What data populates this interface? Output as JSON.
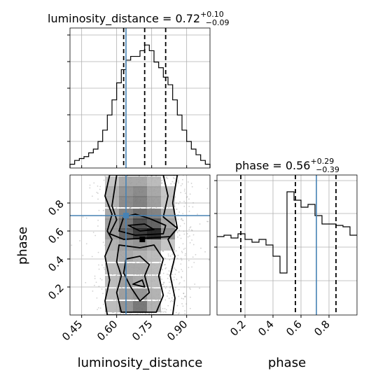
{
  "chart_data": [
    {
      "type": "histogram",
      "panel": "luminosity_distance marginal",
      "title_param": "luminosity_distance",
      "title_value": "0.72",
      "title_plus": "+0.10",
      "title_minus": "−0.09",
      "xlim": [
        0.4,
        1.0
      ],
      "bin_edges": [
        0.4,
        0.42,
        0.44,
        0.46,
        0.48,
        0.5,
        0.52,
        0.54,
        0.56,
        0.58,
        0.6,
        0.62,
        0.64,
        0.66,
        0.68,
        0.7,
        0.72,
        0.74,
        0.76,
        0.78,
        0.8,
        0.82,
        0.84,
        0.86,
        0.88,
        0.9,
        0.92,
        0.94,
        0.96,
        0.98,
        1.0
      ],
      "counts": [
        2,
        4,
        5,
        6,
        8,
        10,
        14,
        20,
        28,
        36,
        45,
        52,
        57,
        59,
        59,
        62,
        65,
        62,
        56,
        53,
        48,
        44,
        36,
        28,
        20,
        14,
        10,
        7,
        4,
        2
      ],
      "count_max": 74,
      "quantile_lines": [
        0.63,
        0.72,
        0.81
      ],
      "truth": 0.64,
      "gridlines_x": [
        0.45,
        0.6,
        0.75,
        0.9
      ],
      "grid": true
    },
    {
      "type": "histogram",
      "panel": "phase marginal",
      "title_param": "phase",
      "title_value": "0.56",
      "title_plus": "+0.29",
      "title_minus": "−0.39",
      "xlim": [
        0.0,
        1.0
      ],
      "bin_edges": [
        0.0,
        0.05,
        0.1,
        0.15,
        0.2,
        0.25,
        0.3,
        0.35,
        0.4,
        0.45,
        0.5,
        0.55,
        0.6,
        0.65,
        0.7,
        0.75,
        0.8,
        0.85,
        0.9,
        0.95,
        1.0
      ],
      "counts": [
        56,
        57,
        55,
        58,
        54,
        52,
        54,
        50,
        42,
        30,
        88,
        82,
        77,
        79,
        71,
        65,
        65,
        64,
        63,
        57
      ],
      "count_max": 100,
      "quantile_lines": [
        0.17,
        0.56,
        0.85
      ],
      "truth": 0.71,
      "ticks": [
        {
          "value": 0.2,
          "label": "0.2"
        },
        {
          "value": 0.4,
          "label": "0.4"
        },
        {
          "value": 0.6,
          "label": "0.6"
        },
        {
          "value": 0.8,
          "label": "0.8"
        }
      ],
      "grid": true
    },
    {
      "type": "heatmap",
      "panel": "2D posterior phase vs luminosity_distance",
      "xlabel": "luminosity_distance",
      "ylabel": "phase",
      "xlim": [
        0.4,
        1.0
      ],
      "ylim": [
        0.0,
        1.0
      ],
      "x_ticks": [
        {
          "value": 0.45,
          "label": "0.45"
        },
        {
          "value": 0.6,
          "label": "0.60"
        },
        {
          "value": 0.75,
          "label": "0.75"
        },
        {
          "value": 0.9,
          "label": "0.90"
        }
      ],
      "y_ticks": [
        {
          "value": 0.2,
          "label": "0.2"
        },
        {
          "value": 0.4,
          "label": "0.4"
        },
        {
          "value": 0.6,
          "label": "0.6"
        },
        {
          "value": 0.8,
          "label": "0.8"
        }
      ],
      "truth": {
        "x": 0.64,
        "y": 0.71
      },
      "density_cells": [
        {
          "x": 0.58,
          "y": 0.95,
          "v": 0.2
        },
        {
          "x": 0.64,
          "y": 0.95,
          "v": 0.35
        },
        {
          "x": 0.7,
          "y": 0.95,
          "v": 0.35
        },
        {
          "x": 0.76,
          "y": 0.95,
          "v": 0.25
        },
        {
          "x": 0.58,
          "y": 0.88,
          "v": 0.3
        },
        {
          "x": 0.64,
          "y": 0.88,
          "v": 0.45
        },
        {
          "x": 0.7,
          "y": 0.88,
          "v": 0.5
        },
        {
          "x": 0.76,
          "y": 0.88,
          "v": 0.35
        },
        {
          "x": 0.82,
          "y": 0.88,
          "v": 0.2
        },
        {
          "x": 0.58,
          "y": 0.81,
          "v": 0.3
        },
        {
          "x": 0.64,
          "y": 0.81,
          "v": 0.5
        },
        {
          "x": 0.7,
          "y": 0.81,
          "v": 0.55
        },
        {
          "x": 0.76,
          "y": 0.81,
          "v": 0.4
        },
        {
          "x": 0.82,
          "y": 0.81,
          "v": 0.2
        },
        {
          "x": 0.58,
          "y": 0.72,
          "v": 0.35
        },
        {
          "x": 0.64,
          "y": 0.72,
          "v": 0.55
        },
        {
          "x": 0.7,
          "y": 0.72,
          "v": 0.65
        },
        {
          "x": 0.76,
          "y": 0.72,
          "v": 0.55
        },
        {
          "x": 0.82,
          "y": 0.72,
          "v": 0.3
        },
        {
          "x": 0.58,
          "y": 0.65,
          "v": 0.4
        },
        {
          "x": 0.64,
          "y": 0.65,
          "v": 0.6
        },
        {
          "x": 0.7,
          "y": 0.65,
          "v": 0.8
        },
        {
          "x": 0.76,
          "y": 0.65,
          "v": 0.7
        },
        {
          "x": 0.82,
          "y": 0.65,
          "v": 0.35
        },
        {
          "x": 0.58,
          "y": 0.58,
          "v": 0.4
        },
        {
          "x": 0.64,
          "y": 0.58,
          "v": 0.7
        },
        {
          "x": 0.7,
          "y": 0.58,
          "v": 0.9
        },
        {
          "x": 0.76,
          "y": 0.58,
          "v": 1.0
        },
        {
          "x": 0.82,
          "y": 0.58,
          "v": 0.45
        },
        {
          "x": 0.58,
          "y": 0.5,
          "v": 0.3
        },
        {
          "x": 0.64,
          "y": 0.5,
          "v": 0.4
        },
        {
          "x": 0.7,
          "y": 0.5,
          "v": 0.45
        },
        {
          "x": 0.76,
          "y": 0.5,
          "v": 0.35
        },
        {
          "x": 0.82,
          "y": 0.5,
          "v": 0.2
        },
        {
          "x": 0.58,
          "y": 0.42,
          "v": 0.25
        },
        {
          "x": 0.64,
          "y": 0.42,
          "v": 0.35
        },
        {
          "x": 0.7,
          "y": 0.42,
          "v": 0.3
        },
        {
          "x": 0.76,
          "y": 0.42,
          "v": 0.25
        },
        {
          "x": 0.58,
          "y": 0.33,
          "v": 0.25
        },
        {
          "x": 0.64,
          "y": 0.33,
          "v": 0.35
        },
        {
          "x": 0.7,
          "y": 0.33,
          "v": 0.35
        },
        {
          "x": 0.76,
          "y": 0.33,
          "v": 0.25
        },
        {
          "x": 0.58,
          "y": 0.24,
          "v": 0.25
        },
        {
          "x": 0.64,
          "y": 0.24,
          "v": 0.4
        },
        {
          "x": 0.7,
          "y": 0.24,
          "v": 0.35
        },
        {
          "x": 0.76,
          "y": 0.24,
          "v": 0.25
        },
        {
          "x": 0.58,
          "y": 0.15,
          "v": 0.25
        },
        {
          "x": 0.64,
          "y": 0.15,
          "v": 0.4
        },
        {
          "x": 0.7,
          "y": 0.15,
          "v": 0.45
        },
        {
          "x": 0.76,
          "y": 0.15,
          "v": 0.3
        },
        {
          "x": 0.58,
          "y": 0.06,
          "v": 0.25
        },
        {
          "x": 0.64,
          "y": 0.06,
          "v": 0.45
        },
        {
          "x": 0.7,
          "y": 0.06,
          "v": 0.6
        },
        {
          "x": 0.76,
          "y": 0.06,
          "v": 0.3
        }
      ],
      "contours": [
        [
          [
            0.57,
            1.0
          ],
          [
            0.55,
            0.85
          ],
          [
            0.58,
            0.72
          ],
          [
            0.56,
            0.6
          ],
          [
            0.58,
            0.54
          ],
          [
            0.55,
            0.42
          ],
          [
            0.57,
            0.25
          ],
          [
            0.55,
            0.1
          ],
          [
            0.56,
            0.0
          ],
          [
            0.84,
            0.0
          ],
          [
            0.85,
            0.12
          ],
          [
            0.83,
            0.28
          ],
          [
            0.85,
            0.42
          ],
          [
            0.82,
            0.54
          ],
          [
            0.86,
            0.62
          ],
          [
            0.84,
            0.8
          ],
          [
            0.86,
            1.0
          ]
        ],
        [
          [
            0.6,
            1.0
          ],
          [
            0.58,
            0.78
          ],
          [
            0.6,
            0.68
          ],
          [
            0.57,
            0.58
          ],
          [
            0.63,
            0.54
          ],
          [
            0.83,
            0.56
          ],
          [
            0.86,
            0.62
          ],
          [
            0.8,
            0.7
          ],
          [
            0.82,
            0.85
          ],
          [
            0.8,
            1.0
          ]
        ],
        [
          [
            0.63,
            0.7
          ],
          [
            0.61,
            0.6
          ],
          [
            0.68,
            0.57
          ],
          [
            0.8,
            0.58
          ],
          [
            0.81,
            0.64
          ],
          [
            0.74,
            0.69
          ],
          [
            0.68,
            0.72
          ]
        ],
        [
          [
            0.65,
            0.64
          ],
          [
            0.7,
            0.6
          ],
          [
            0.76,
            0.61
          ],
          [
            0.72,
            0.65
          ]
        ],
        [
          [
            0.61,
            0.5
          ],
          [
            0.6,
            0.38
          ],
          [
            0.62,
            0.28
          ],
          [
            0.6,
            0.16
          ],
          [
            0.62,
            0.02
          ],
          [
            0.77,
            0.02
          ],
          [
            0.8,
            0.14
          ],
          [
            0.78,
            0.28
          ],
          [
            0.8,
            0.4
          ],
          [
            0.76,
            0.5
          ],
          [
            0.7,
            0.48
          ]
        ],
        [
          [
            0.64,
            0.4
          ],
          [
            0.63,
            0.3
          ],
          [
            0.66,
            0.2
          ],
          [
            0.7,
            0.1
          ],
          [
            0.74,
            0.16
          ],
          [
            0.72,
            0.28
          ],
          [
            0.74,
            0.36
          ],
          [
            0.7,
            0.42
          ]
        ],
        [
          [
            0.67,
            0.22
          ],
          [
            0.72,
            0.2
          ],
          [
            0.71,
            0.25
          ]
        ]
      ],
      "peak_marker": {
        "x": 0.71,
        "y": 0.54
      }
    }
  ],
  "colors": {
    "truth": "#4682b4",
    "line": "#000000",
    "grid": "#b0b0b0",
    "scatter": "#9a9a9a"
  }
}
